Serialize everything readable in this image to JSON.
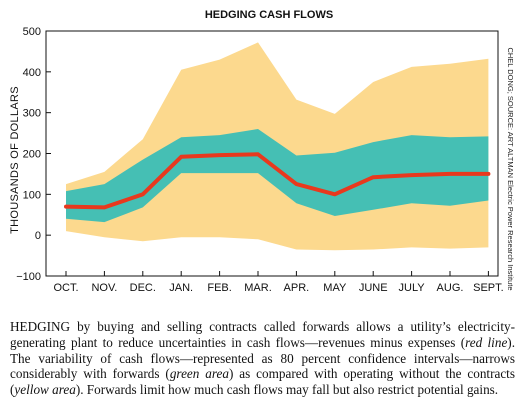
{
  "chart_data": {
    "type": "area",
    "title": "HEDGING CASH FLOWS",
    "ylabel": "THOUSANDS OF DOLLARS",
    "xlabel": "",
    "categories": [
      "OCT.",
      "NOV.",
      "DEC.",
      "JAN.",
      "FEB.",
      "MAR.",
      "APR.",
      "MAY",
      "JUNE",
      "JULY",
      "AUG.",
      "SEPT."
    ],
    "ylim": [
      -100,
      500
    ],
    "yticks": [
      "500",
      "400",
      "300",
      "200",
      "100",
      "0",
      "−100"
    ],
    "ytick_values": [
      500,
      400,
      300,
      200,
      100,
      0,
      -100
    ],
    "grid": false,
    "series": [
      {
        "kind": "band",
        "color": "#fcd98e",
        "upper": [
          125,
          155,
          235,
          405,
          430,
          472,
          332,
          297,
          375,
          412,
          420,
          432
        ],
        "lower": [
          10,
          -5,
          -15,
          -5,
          -5,
          -10,
          -35,
          -37,
          -35,
          -30,
          -33,
          -30
        ]
      },
      {
        "kind": "band",
        "color": "#45bfb4",
        "upper": [
          108,
          125,
          185,
          240,
          245,
          260,
          195,
          202,
          228,
          245,
          240,
          242
        ],
        "lower": [
          40,
          32,
          68,
          152,
          152,
          152,
          78,
          47,
          62,
          78,
          72,
          85
        ]
      },
      {
        "kind": "line",
        "color": "#e8391e",
        "values": [
          70,
          68,
          100,
          192,
          196,
          198,
          125,
          100,
          142,
          147,
          150,
          150
        ]
      }
    ],
    "credit": "CHEL DONG; SOURCE: ART ALTMAN Electric Power Research Institute"
  },
  "caption": {
    "p1": "HEDGING by buying and selling contracts called forwards allows a utility’s electricity-generating plant to reduce uncertainties in cash flows—revenues minus expenses (",
    "red_label": "red line",
    "p2": "). The variability of cash flows—represented as 80 percent confidence intervals—narrows considerably with forwards (",
    "green_label": "green area",
    "p3": ") as compared with operating without the contracts (",
    "yellow_label": "yellow area",
    "p4": "). Forwards limit how much cash flows may fall but also restrict potential gains."
  }
}
